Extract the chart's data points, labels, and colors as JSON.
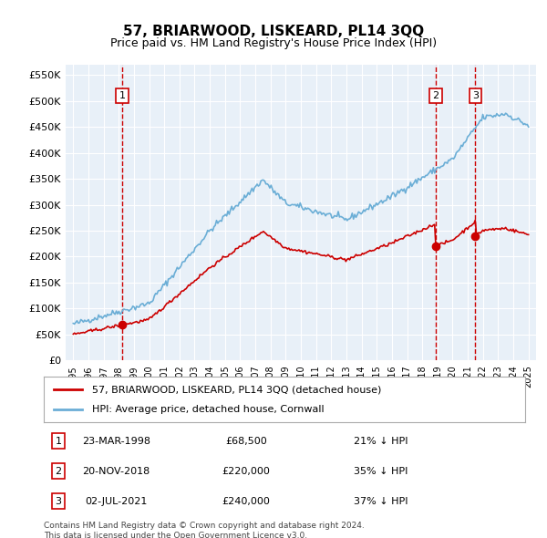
{
  "title": "57, BRIARWOOD, LISKEARD, PL14 3QQ",
  "subtitle": "Price paid vs. HM Land Registry's House Price Index (HPI)",
  "hpi_label": "HPI: Average price, detached house, Cornwall",
  "price_label": "57, BRIARWOOD, LISKEARD, PL14 3QQ (detached house)",
  "transactions": [
    {
      "num": 1,
      "date": "23-MAR-1998",
      "price": 68500,
      "hpi_pct": "21% ↓ HPI",
      "date_x": 1998.22
    },
    {
      "num": 2,
      "date": "20-NOV-2018",
      "price": 220000,
      "hpi_pct": "35% ↓ HPI",
      "date_x": 2018.89
    },
    {
      "num": 3,
      "date": "02-JUL-2021",
      "price": 240000,
      "hpi_pct": "37% ↓ HPI",
      "date_x": 2021.5
    }
  ],
  "footer": "Contains HM Land Registry data © Crown copyright and database right 2024.\nThis data is licensed under the Open Government Licence v3.0.",
  "ylim": [
    0,
    570000
  ],
  "yticks": [
    0,
    50000,
    100000,
    150000,
    200000,
    250000,
    300000,
    350000,
    400000,
    450000,
    500000,
    550000
  ],
  "xlim": [
    1994.5,
    2025.5
  ],
  "xticks": [
    1995,
    1996,
    1997,
    1998,
    1999,
    2000,
    2001,
    2002,
    2003,
    2004,
    2005,
    2006,
    2007,
    2008,
    2009,
    2010,
    2011,
    2012,
    2013,
    2014,
    2015,
    2016,
    2017,
    2018,
    2019,
    2020,
    2021,
    2022,
    2023,
    2024,
    2025
  ],
  "hpi_color": "#6baed6",
  "price_color": "#cc0000",
  "vline_color": "#cc0000",
  "bg_color": "#e8f0f8",
  "grid_color": "#ffffff",
  "box_color": "#cc0000"
}
